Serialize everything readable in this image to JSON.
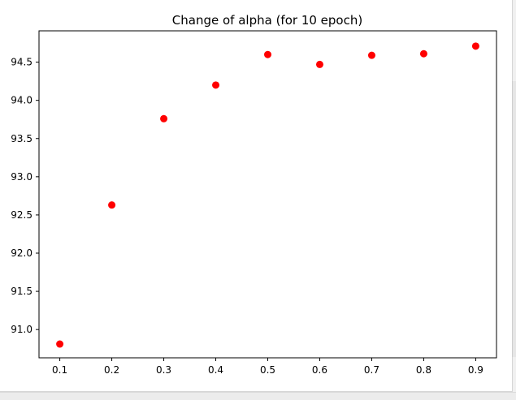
{
  "chart_data": {
    "type": "scatter",
    "title": "Change of alpha (for 10 epoch)",
    "xlabel": "",
    "ylabel": "",
    "x": [
      0.1,
      0.2,
      0.3,
      0.4,
      0.5,
      0.6,
      0.7,
      0.8,
      0.9
    ],
    "series": [
      {
        "values": [
          90.81,
          92.63,
          93.76,
          94.2,
          94.6,
          94.47,
          94.59,
          94.61,
          94.71
        ],
        "color": "#ff0000"
      }
    ],
    "xlim": [
      0.06,
      0.94
    ],
    "ylim": [
      90.63,
      94.91
    ],
    "xticks": [
      "0.1",
      "0.2",
      "0.3",
      "0.4",
      "0.5",
      "0.6",
      "0.7",
      "0.8",
      "0.9"
    ],
    "yticks": [
      "91.0",
      "91.5",
      "92.0",
      "92.5",
      "93.0",
      "93.5",
      "94.0",
      "94.5"
    ],
    "grid": false,
    "legend": false
  }
}
